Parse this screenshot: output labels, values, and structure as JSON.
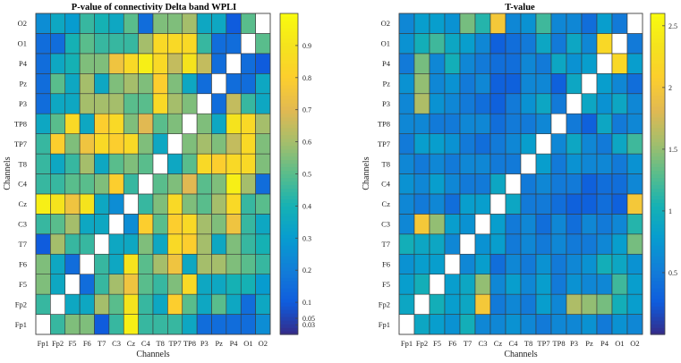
{
  "chart_data": [
    {
      "type": "heatmap",
      "title": "P-value of connectivity Delta band WPLI",
      "xlabel": "Channels",
      "ylabel": "Channels",
      "channels": [
        "Fp1",
        "Fp2",
        "F5",
        "F6",
        "T7",
        "C3",
        "Cz",
        "C4",
        "T8",
        "TP7",
        "TP8",
        "P3",
        "Pz",
        "P4",
        "O1",
        "O2"
      ],
      "colorbar": {
        "range": [
          0,
          1
        ],
        "ticks": [
          {
            "value": 0.03,
            "label": "0.03"
          },
          {
            "value": 0.05,
            "label": "0.05"
          },
          {
            "value": 0.1,
            "label": "0.1"
          },
          {
            "value": 0.2,
            "label": "0.2"
          },
          {
            "value": 0.3,
            "label": "0.3"
          },
          {
            "value": 0.4,
            "label": "0.4"
          },
          {
            "value": 0.5,
            "label": "0.5"
          },
          {
            "value": 0.6,
            "label": "0.6"
          },
          {
            "value": 0.7,
            "label": "0.7"
          },
          {
            "value": 0.8,
            "label": "0.8"
          },
          {
            "value": 0.9,
            "label": "0.9"
          }
        ]
      },
      "diagonal": "white",
      "matrix": [
        [
          null,
          0.45,
          0.55,
          0.55,
          0.1,
          0.45,
          0.95,
          0.45,
          0.45,
          0.45,
          0.35,
          0.15,
          0.15,
          0.15,
          0.15,
          0.25
        ],
        [
          0.45,
          null,
          0.35,
          0.35,
          0.6,
          0.5,
          0.9,
          0.45,
          0.35,
          0.8,
          0.5,
          0.35,
          0.5,
          0.35,
          0.15,
          0.35
        ],
        [
          0.55,
          0.35,
          null,
          0.15,
          0.45,
          0.6,
          0.75,
          0.5,
          0.45,
          0.55,
          0.85,
          0.35,
          0.35,
          0.4,
          0.4,
          0.3
        ],
        [
          0.55,
          0.35,
          0.15,
          null,
          0.45,
          0.35,
          0.9,
          0.5,
          0.6,
          0.75,
          0.35,
          0.6,
          0.6,
          0.55,
          0.5,
          0.45
        ],
        [
          0.1,
          0.6,
          0.45,
          0.45,
          null,
          0.35,
          0.35,
          0.55,
          0.35,
          0.85,
          0.8,
          0.6,
          0.35,
          0.55,
          0.45,
          0.4
        ],
        [
          0.45,
          0.5,
          0.6,
          0.35,
          0.35,
          null,
          0.25,
          0.8,
          0.5,
          0.8,
          0.85,
          0.6,
          0.55,
          0.75,
          0.45,
          0.35
        ],
        [
          0.95,
          0.9,
          0.75,
          0.9,
          0.35,
          0.25,
          null,
          0.45,
          0.55,
          0.85,
          0.55,
          0.5,
          0.6,
          0.85,
          0.45,
          0.5
        ],
        [
          0.45,
          0.45,
          0.5,
          0.5,
          0.55,
          0.8,
          0.45,
          null,
          0.5,
          0.55,
          0.7,
          0.5,
          0.55,
          0.95,
          0.6,
          0.15
        ],
        [
          0.45,
          0.35,
          0.45,
          0.6,
          0.35,
          0.5,
          0.55,
          0.5,
          null,
          0.35,
          0.5,
          0.85,
          0.8,
          0.85,
          0.85,
          0.55
        ],
        [
          0.45,
          0.8,
          0.55,
          0.75,
          0.85,
          0.8,
          0.85,
          0.55,
          0.35,
          null,
          0.55,
          0.6,
          0.55,
          0.65,
          0.85,
          0.55
        ],
        [
          0.35,
          0.5,
          0.85,
          0.35,
          0.8,
          0.85,
          0.55,
          0.7,
          0.5,
          0.55,
          null,
          0.55,
          0.35,
          0.9,
          0.85,
          0.6
        ],
        [
          0.15,
          0.35,
          0.35,
          0.6,
          0.6,
          0.6,
          0.5,
          0.5,
          0.85,
          0.6,
          0.55,
          null,
          0.15,
          0.65,
          0.45,
          0.35
        ],
        [
          0.15,
          0.5,
          0.35,
          0.6,
          0.35,
          0.55,
          0.6,
          0.55,
          0.8,
          0.55,
          0.35,
          0.15,
          null,
          0.15,
          0.15,
          0.35
        ],
        [
          0.15,
          0.35,
          0.4,
          0.55,
          0.55,
          0.75,
          0.85,
          0.95,
          0.85,
          0.65,
          0.9,
          0.65,
          0.15,
          null,
          0.15,
          0.1
        ],
        [
          0.15,
          0.15,
          0.4,
          0.5,
          0.45,
          0.45,
          0.45,
          0.6,
          0.85,
          0.85,
          0.85,
          0.45,
          0.15,
          0.15,
          null,
          0.5
        ],
        [
          0.25,
          0.35,
          0.3,
          0.45,
          0.4,
          0.35,
          0.5,
          0.15,
          0.55,
          0.55,
          0.6,
          0.35,
          0.35,
          0.1,
          0.5,
          null
        ]
      ]
    },
    {
      "type": "heatmap",
      "title": "T-value",
      "xlabel": "Channels",
      "ylabel": "Channels",
      "channels": [
        "Fp1",
        "Fp2",
        "F5",
        "F6",
        "T7",
        "C3",
        "Cz",
        "C4",
        "T8",
        "TP7",
        "TP8",
        "P3",
        "Pz",
        "P4",
        "O1",
        "O2"
      ],
      "colorbar": {
        "range": [
          0,
          2.6
        ],
        "ticks": [
          {
            "value": 0.5,
            "label": "0.5"
          },
          {
            "value": 1,
            "label": "1"
          },
          {
            "value": 1.5,
            "label": "1.5"
          },
          {
            "value": 2,
            "label": "2"
          },
          {
            "value": 2.5,
            "label": "2.5"
          }
        ]
      },
      "diagonal": "white",
      "matrix": [
        [
          null,
          0.9,
          0.8,
          0.7,
          1.0,
          0.6,
          0.6,
          0.7,
          0.6,
          0.5,
          0.6,
          0.6,
          0.7,
          0.5,
          0.7,
          0.6
        ],
        [
          0.9,
          null,
          1.0,
          0.8,
          0.9,
          2.0,
          0.5,
          0.6,
          0.5,
          0.8,
          0.6,
          1.6,
          1.5,
          1.4,
          1.0,
          0.8
        ],
        [
          0.8,
          1.0,
          null,
          0.8,
          0.9,
          1.5,
          0.6,
          0.8,
          0.6,
          0.8,
          0.5,
          0.7,
          0.6,
          0.6,
          1.2,
          0.8
        ],
        [
          0.7,
          0.8,
          0.8,
          null,
          0.6,
          0.8,
          0.4,
          0.6,
          0.5,
          0.7,
          0.5,
          0.6,
          0.7,
          1.0,
          0.9,
          0.7
        ],
        [
          1.0,
          0.9,
          0.9,
          0.6,
          null,
          0.7,
          0.8,
          0.5,
          0.6,
          0.5,
          0.6,
          0.5,
          0.5,
          0.6,
          0.8,
          1.4
        ],
        [
          0.6,
          2.0,
          1.5,
          0.8,
          0.7,
          null,
          0.8,
          0.5,
          0.6,
          0.4,
          0.6,
          0.4,
          0.6,
          0.5,
          0.6,
          1.1
        ],
        [
          0.6,
          0.5,
          0.6,
          0.4,
          0.8,
          0.8,
          null,
          0.9,
          0.5,
          0.5,
          0.4,
          0.3,
          0.3,
          0.4,
          0.3,
          2.0
        ],
        [
          0.7,
          0.6,
          0.8,
          0.6,
          0.5,
          0.5,
          0.9,
          null,
          0.5,
          0.6,
          0.5,
          0.5,
          0.3,
          0.4,
          0.4,
          0.6
        ],
        [
          0.6,
          0.5,
          0.6,
          0.5,
          0.6,
          0.6,
          0.5,
          0.5,
          null,
          0.8,
          0.5,
          0.7,
          0.6,
          0.6,
          0.5,
          0.7
        ],
        [
          0.5,
          0.8,
          0.8,
          0.7,
          0.5,
          0.4,
          0.5,
          0.6,
          0.8,
          null,
          0.6,
          0.9,
          0.6,
          0.5,
          0.9,
          1.2
        ],
        [
          0.6,
          0.6,
          0.5,
          0.5,
          0.6,
          0.6,
          0.4,
          0.5,
          0.5,
          0.6,
          null,
          0.5,
          0.3,
          0.9,
          0.5,
          0.6
        ],
        [
          0.6,
          1.6,
          0.7,
          0.6,
          0.5,
          0.4,
          0.3,
          0.5,
          0.7,
          0.9,
          0.5,
          null,
          0.9,
          0.7,
          0.9,
          0.6
        ],
        [
          0.7,
          1.5,
          0.6,
          0.7,
          0.5,
          0.6,
          0.3,
          0.3,
          0.6,
          0.6,
          0.3,
          0.9,
          null,
          0.8,
          0.6,
          0.4
        ],
        [
          0.5,
          1.4,
          0.6,
          1.0,
          0.6,
          0.5,
          0.4,
          0.4,
          0.6,
          0.5,
          0.9,
          0.7,
          0.8,
          null,
          2.2,
          0.8
        ],
        [
          0.7,
          1.0,
          1.2,
          0.9,
          0.8,
          0.6,
          0.3,
          0.4,
          0.5,
          0.9,
          0.5,
          0.9,
          0.6,
          2.2,
          null,
          0.5
        ],
        [
          0.6,
          0.8,
          0.8,
          0.7,
          1.4,
          1.1,
          2.0,
          0.6,
          0.7,
          1.2,
          0.6,
          0.6,
          0.4,
          0.8,
          0.5,
          null
        ]
      ]
    }
  ]
}
